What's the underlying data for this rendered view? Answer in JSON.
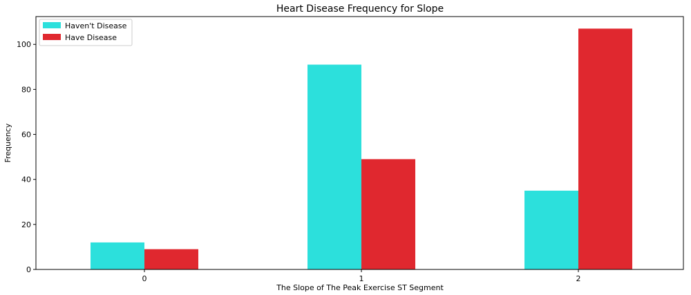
{
  "chart_data": {
    "type": "bar",
    "title": "Heart Disease Frequency for Slope",
    "xlabel": "The Slope of The Peak Exercise ST Segment",
    "ylabel": "Frequency",
    "categories": [
      "0",
      "1",
      "2"
    ],
    "series": [
      {
        "name": "Haven't Disease",
        "color": "#2ce0dc",
        "values": [
          12,
          91,
          35
        ]
      },
      {
        "name": "Have Disease",
        "color": "#e0282f",
        "values": [
          9,
          49,
          107
        ]
      }
    ],
    "ylim": [
      0,
      112.35
    ],
    "yticks": [
      0,
      20,
      40,
      60,
      80,
      100
    ],
    "grid": false,
    "legend_position": "top-left"
  }
}
